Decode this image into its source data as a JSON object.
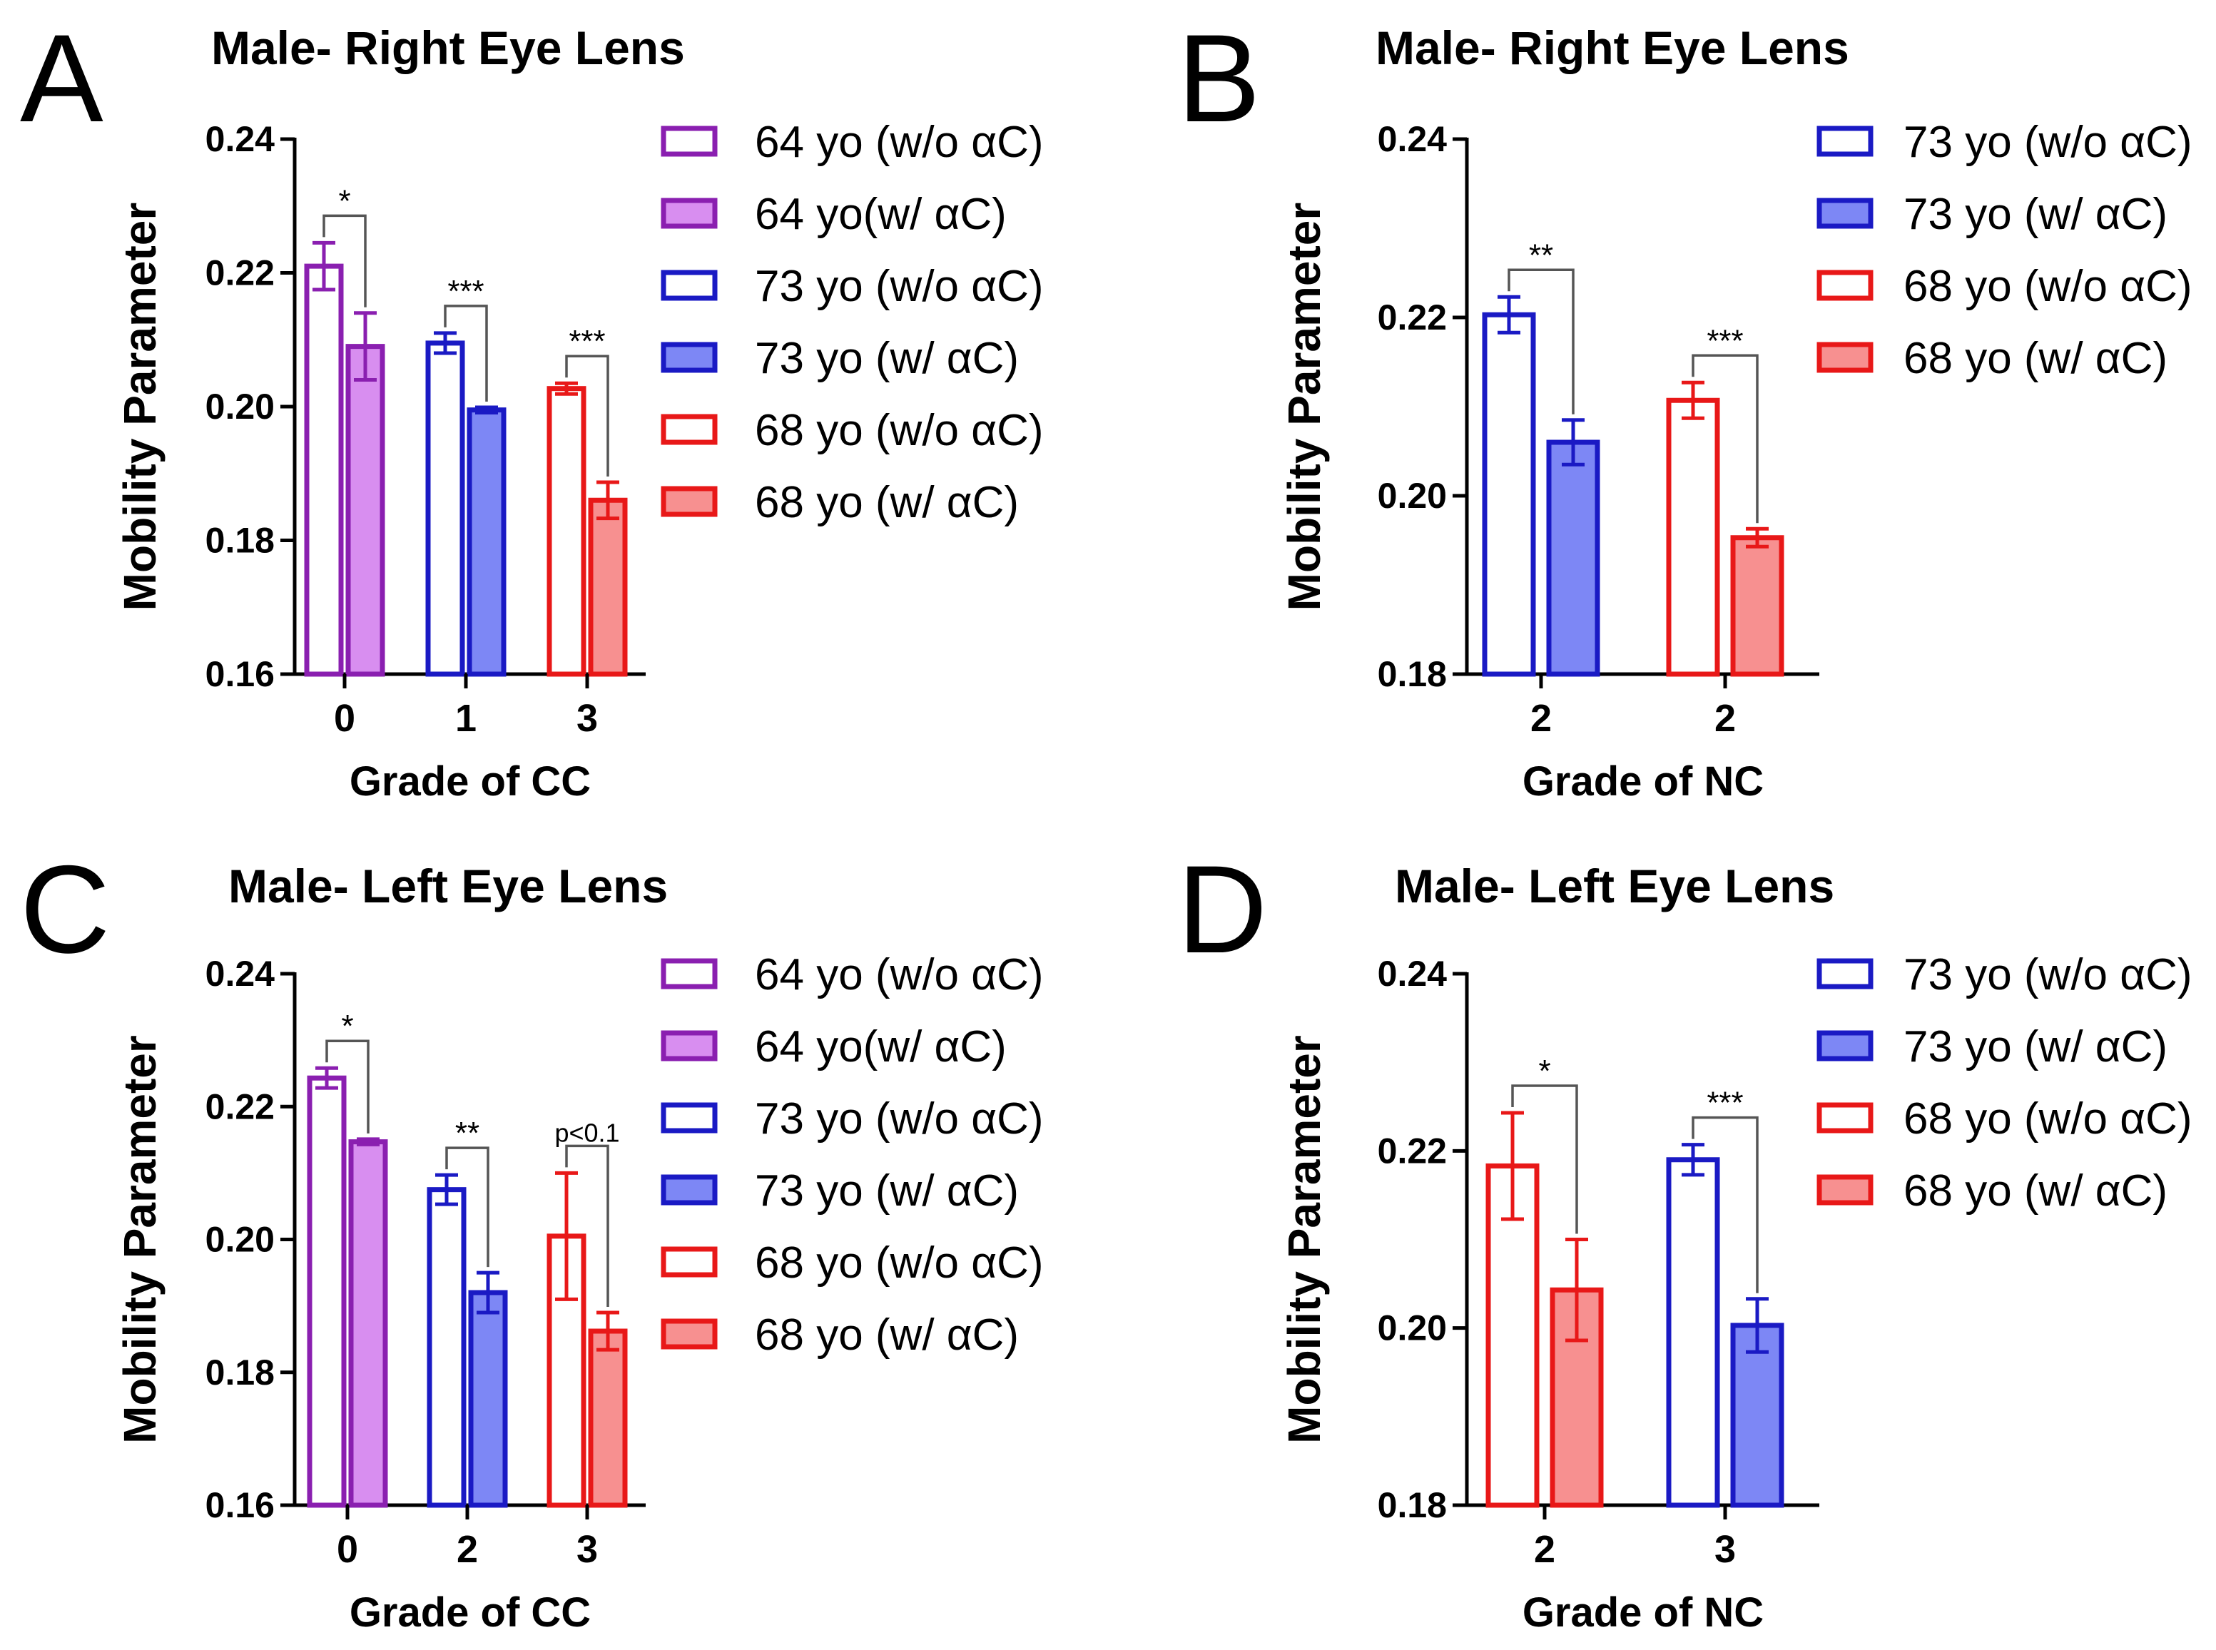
{
  "chart_data": [
    {
      "type": "bar",
      "panel": "A",
      "title": "Male- Right  Eye Lens",
      "ylabel": "Mobility Parameter",
      "xlabel": "Grade of CC",
      "ylim": [
        0.16,
        0.24
      ],
      "yticks": [
        "0.16",
        "0.18",
        "0.20",
        "0.22",
        "0.24"
      ],
      "categories": [
        "0",
        "1",
        "3"
      ],
      "bars": [
        {
          "group": 0,
          "series": "64 yo (w/o αC)",
          "value": 0.221,
          "err": 0.0035,
          "color": "#8a1fb0",
          "filled": false
        },
        {
          "group": 0,
          "series": "64 yo(w/ αC)",
          "value": 0.209,
          "err": 0.005,
          "color": "#8a1fb0",
          "filled": true,
          "fill": "#d88ef0"
        },
        {
          "group": 1,
          "series": "73 yo (w/o αC)",
          "value": 0.2095,
          "err": 0.0015,
          "color": "#1a1ac4",
          "filled": false
        },
        {
          "group": 1,
          "series": "73 yo (w/ αC)",
          "value": 0.1995,
          "err": 0.0004,
          "color": "#1a1ac4",
          "filled": true,
          "fill": "#7d87f5"
        },
        {
          "group": 2,
          "series": "68 yo (w/o αC)",
          "value": 0.2027,
          "err": 0.0008,
          "color": "#e81818",
          "filled": false
        },
        {
          "group": 2,
          "series": "68 yo (w/ αC)",
          "value": 0.186,
          "err": 0.0027,
          "color": "#e81818",
          "filled": true,
          "fill": "#f79090"
        }
      ],
      "annotations": [
        {
          "group": 0,
          "text": "*"
        },
        {
          "group": 1,
          "text": "***"
        },
        {
          "group": 2,
          "text": "***"
        }
      ],
      "legend": [
        {
          "label": "64 yo (w/o αC)",
          "color": "#8a1fb0",
          "filled": false
        },
        {
          "label": "64 yo(w/ αC)",
          "color": "#8a1fb0",
          "filled": true,
          "fill": "#d88ef0"
        },
        {
          "label": "73 yo (w/o αC)",
          "color": "#1a1ac4",
          "filled": false
        },
        {
          "label": "73 yo (w/ αC)",
          "color": "#1a1ac4",
          "filled": true,
          "fill": "#7d87f5"
        },
        {
          "label": "68 yo (w/o αC)",
          "color": "#e81818",
          "filled": false
        },
        {
          "label": "68 yo (w/ αC)",
          "color": "#e81818",
          "filled": true,
          "fill": "#f79090"
        }
      ]
    },
    {
      "type": "bar",
      "panel": "B",
      "title": "Male- Right Eye Lens",
      "ylabel": "Mobility Parameter",
      "xlabel": "Grade of NC",
      "ylim": [
        0.18,
        0.24
      ],
      "yticks": [
        "0.18",
        "0.20",
        "0.22",
        "0.24"
      ],
      "categories": [
        "2",
        "2"
      ],
      "bars": [
        {
          "group": 0,
          "series": "73 yo (w/o αC)",
          "value": 0.2203,
          "err": 0.002,
          "color": "#1a1ac4",
          "filled": false
        },
        {
          "group": 0,
          "series": "73 yo (w/ αC)",
          "value": 0.206,
          "err": 0.0025,
          "color": "#1a1ac4",
          "filled": true,
          "fill": "#7d87f5"
        },
        {
          "group": 1,
          "series": "68 yo (w/o αC)",
          "value": 0.2107,
          "err": 0.002,
          "color": "#e81818",
          "filled": false
        },
        {
          "group": 1,
          "series": "68 yo (w/ αC)",
          "value": 0.1953,
          "err": 0.001,
          "color": "#e81818",
          "filled": true,
          "fill": "#f79090"
        }
      ],
      "annotations": [
        {
          "group": 0,
          "text": "**"
        },
        {
          "group": 1,
          "text": "***"
        }
      ],
      "legend": [
        {
          "label": "73 yo (w/o αC)",
          "color": "#1a1ac4",
          "filled": false
        },
        {
          "label": "73 yo (w/ αC)",
          "color": "#1a1ac4",
          "filled": true,
          "fill": "#7d87f5"
        },
        {
          "label": "68 yo (w/o αC)",
          "color": "#e81818",
          "filled": false
        },
        {
          "label": "68 yo (w/ αC)",
          "color": "#e81818",
          "filled": true,
          "fill": "#f79090"
        }
      ]
    },
    {
      "type": "bar",
      "panel": "C",
      "title": "Male- Left Eye Lens",
      "ylabel": "Mobility Parameter",
      "xlabel": "Grade of CC",
      "ylim": [
        0.16,
        0.24
      ],
      "yticks": [
        "0.16",
        "0.18",
        "0.20",
        "0.22",
        "0.24"
      ],
      "categories": [
        "0",
        "2",
        "3"
      ],
      "bars": [
        {
          "group": 0,
          "series": "64 yo (w/o αC)",
          "value": 0.2243,
          "err": 0.0015,
          "color": "#8a1fb0",
          "filled": false
        },
        {
          "group": 0,
          "series": "64 yo(w/ αC)",
          "value": 0.2147,
          "err": 0.0004,
          "color": "#8a1fb0",
          "filled": true,
          "fill": "#d88ef0"
        },
        {
          "group": 1,
          "series": "73 yo (w/o αC)",
          "value": 0.2075,
          "err": 0.0022,
          "color": "#1a1ac4",
          "filled": false
        },
        {
          "group": 1,
          "series": "73 yo (w/ αC)",
          "value": 0.192,
          "err": 0.003,
          "color": "#1a1ac4",
          "filled": true,
          "fill": "#7d87f5"
        },
        {
          "group": 2,
          "series": "68 yo (w/o αC)",
          "value": 0.2005,
          "err": 0.0095,
          "color": "#e81818",
          "filled": false
        },
        {
          "group": 2,
          "series": "68 yo (w/ αC)",
          "value": 0.1862,
          "err": 0.0028,
          "color": "#e81818",
          "filled": true,
          "fill": "#f79090"
        }
      ],
      "annotations": [
        {
          "group": 0,
          "text": "*"
        },
        {
          "group": 1,
          "text": "**"
        },
        {
          "group": 2,
          "text": "p<0.1",
          "small": true
        }
      ],
      "legend": [
        {
          "label": "64 yo (w/o αC)",
          "color": "#8a1fb0",
          "filled": false
        },
        {
          "label": "64 yo(w/ αC)",
          "color": "#8a1fb0",
          "filled": true,
          "fill": "#d88ef0"
        },
        {
          "label": "73 yo (w/o αC)",
          "color": "#1a1ac4",
          "filled": false
        },
        {
          "label": "73 yo (w/ αC)",
          "color": "#1a1ac4",
          "filled": true,
          "fill": "#7d87f5"
        },
        {
          "label": "68 yo (w/o αC)",
          "color": "#e81818",
          "filled": false
        },
        {
          "label": "68 yo (w/ αC)",
          "color": "#e81818",
          "filled": true,
          "fill": "#f79090"
        }
      ]
    },
    {
      "type": "bar",
      "panel": "D",
      "title": "Male- Left Eye Lens",
      "ylabel": "Mobility Parameter",
      "xlabel": "Grade of NC",
      "ylim": [
        0.18,
        0.24
      ],
      "yticks": [
        "0.18",
        "0.20",
        "0.22",
        "0.24"
      ],
      "categories": [
        "2",
        "3"
      ],
      "bars": [
        {
          "group": 0,
          "series": "68 yo (w/o αC)",
          "value": 0.2183,
          "err": 0.006,
          "color": "#e81818",
          "filled": false
        },
        {
          "group": 0,
          "series": "68 yo (w/ αC)",
          "value": 0.2043,
          "err": 0.0057,
          "color": "#e81818",
          "filled": true,
          "fill": "#f79090"
        },
        {
          "group": 1,
          "series": "73 yo (w/o αC)",
          "value": 0.219,
          "err": 0.0017,
          "color": "#1a1ac4",
          "filled": false
        },
        {
          "group": 1,
          "series": "73 yo (w/ αC)",
          "value": 0.2003,
          "err": 0.003,
          "color": "#1a1ac4",
          "filled": true,
          "fill": "#7d87f5"
        }
      ],
      "annotations": [
        {
          "group": 0,
          "text": "*"
        },
        {
          "group": 1,
          "text": "***"
        }
      ],
      "legend": [
        {
          "label": "73 yo (w/o αC)",
          "color": "#1a1ac4",
          "filled": false
        },
        {
          "label": "73 yo (w/ αC)",
          "color": "#1a1ac4",
          "filled": true,
          "fill": "#7d87f5"
        },
        {
          "label": "68 yo (w/o αC)",
          "color": "#e81818",
          "filled": false
        },
        {
          "label": "68 yo (w/ αC)",
          "color": "#e81818",
          "filled": true,
          "fill": "#f79090"
        }
      ]
    }
  ]
}
